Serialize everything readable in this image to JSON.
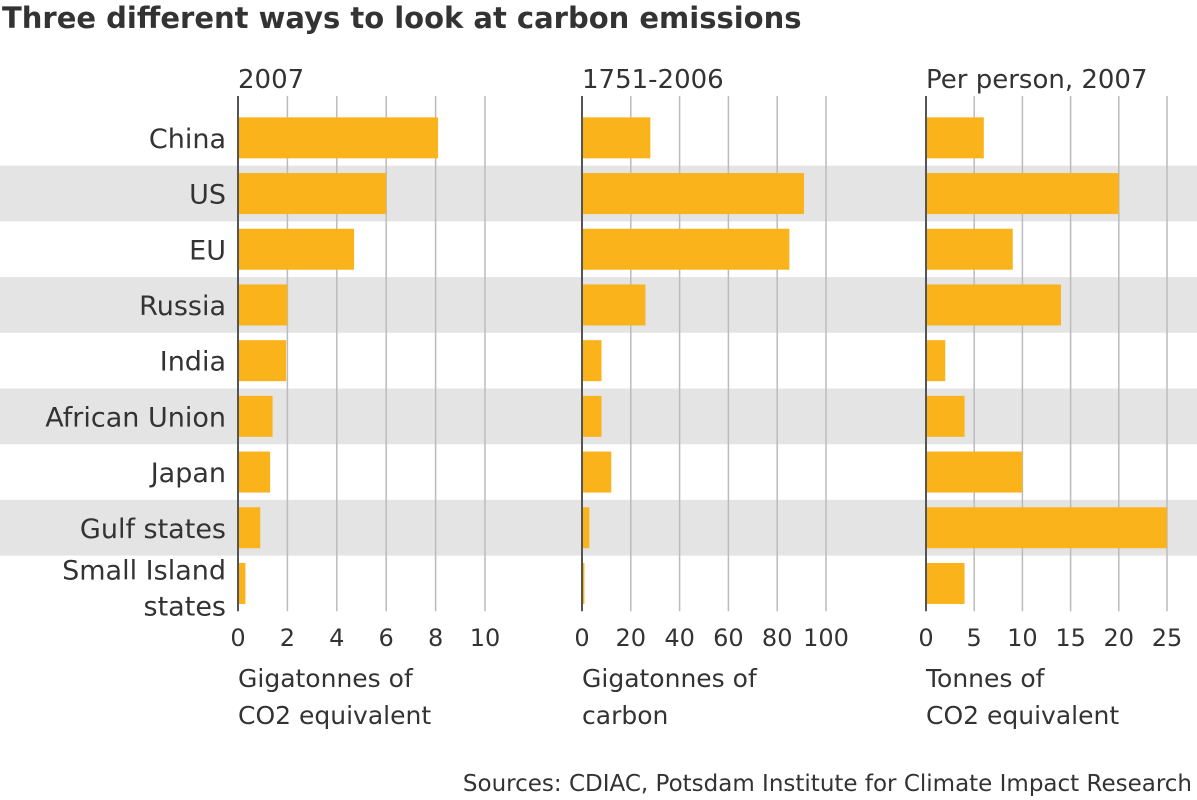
{
  "title": "Three different ways to look at carbon emissions",
  "source": "Sources: CDIAC, Potsdam Institute for Climate Impact Research",
  "colors": {
    "bar": "#FBB31B",
    "band": "#E4E4E4",
    "grid": "#BBBBBB",
    "axis": "#555555",
    "text": "#333333"
  },
  "chart_data": [
    {
      "type": "bar",
      "orientation": "horizontal",
      "title": "2007",
      "categories": [
        "China",
        "US",
        "EU",
        "Russia",
        "India",
        "African Union",
        "Japan",
        "Gulf states",
        "Small Island states"
      ],
      "values": [
        8.1,
        6.0,
        4.7,
        2.0,
        1.95,
        1.4,
        1.3,
        0.9,
        0.3
      ],
      "xlim": [
        0,
        10
      ],
      "xticks": [
        0,
        2,
        4,
        6,
        8,
        10
      ],
      "xlabel": [
        "Gigatonnes of",
        "CO2 equivalent"
      ],
      "grid": true
    },
    {
      "type": "bar",
      "orientation": "horizontal",
      "title": "1751-2006",
      "categories": [
        "China",
        "US",
        "EU",
        "Russia",
        "India",
        "African Union",
        "Japan",
        "Gulf states",
        "Small Island states"
      ],
      "values": [
        28,
        91,
        85,
        26,
        8,
        8,
        12,
        3,
        1
      ],
      "xlim": [
        0,
        100
      ],
      "xticks": [
        0,
        20,
        40,
        60,
        80,
        100
      ],
      "xlabel": [
        "Gigatonnes of",
        "carbon"
      ],
      "grid": true
    },
    {
      "type": "bar",
      "orientation": "horizontal",
      "title": "Per person, 2007",
      "categories": [
        "China",
        "US",
        "EU",
        "Russia",
        "India",
        "African Union",
        "Japan",
        "Gulf states",
        "Small Island states"
      ],
      "values": [
        6,
        20,
        9,
        14,
        2,
        4,
        10,
        25,
        4
      ],
      "xlim": [
        0,
        25
      ],
      "xticks": [
        0,
        5,
        10,
        15,
        20,
        25
      ],
      "xlabel": [
        "Tonnes of",
        "CO2 equivalent"
      ],
      "grid": true
    }
  ],
  "category_labels": [
    [
      "China"
    ],
    [
      "US"
    ],
    [
      "EU"
    ],
    [
      "Russia"
    ],
    [
      "India"
    ],
    [
      "African Union"
    ],
    [
      "Japan"
    ],
    [
      "Gulf states"
    ],
    [
      "Small Island",
      "states"
    ]
  ]
}
